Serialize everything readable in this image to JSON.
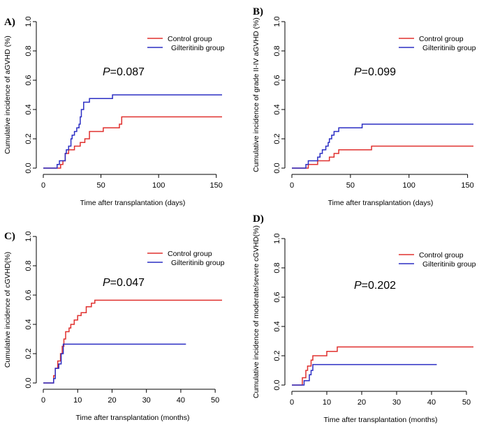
{
  "colors": {
    "control": "#e0302e",
    "gilteritinib": "#2b2ec4",
    "axis": "#000000"
  },
  "chart_data": [
    {
      "type": "line",
      "panel": "A)",
      "xlabel": "Time after transplantation (days)",
      "ylabel": "Cumulative incidence of aGVHD (%)",
      "xlim": [
        0,
        155
      ],
      "ylim": [
        0,
        1
      ],
      "xticks": [
        "0",
        "50",
        "100",
        "150"
      ],
      "xtick_values": [
        0,
        50,
        100,
        150
      ],
      "yticks": [
        "0.0",
        "0.2",
        "0.4",
        "0.6",
        "0.8",
        "1.0"
      ],
      "ytick_values": [
        0,
        0.2,
        0.4,
        0.6,
        0.8,
        1.0
      ],
      "p_prefix": "P",
      "p_value": "=0.087",
      "legend": [
        "Control group",
        "Gilteritinib group"
      ],
      "series": [
        {
          "name": "Control group",
          "x_end": 155,
          "steps": [
            [
              0,
              0
            ],
            [
              15,
              0.025
            ],
            [
              17,
              0.05
            ],
            [
              19,
              0.1
            ],
            [
              22,
              0.125
            ],
            [
              27,
              0.15
            ],
            [
              32,
              0.175
            ],
            [
              36,
              0.2
            ],
            [
              40,
              0.25
            ],
            [
              52,
              0.275
            ],
            [
              66,
              0.3
            ],
            [
              68,
              0.35
            ]
          ]
        },
        {
          "name": "Gilteritinib group",
          "x_end": 155,
          "steps": [
            [
              0,
              0
            ],
            [
              12,
              0.025
            ],
            [
              14,
              0.05
            ],
            [
              19,
              0.1
            ],
            [
              20,
              0.125
            ],
            [
              22,
              0.15
            ],
            [
              24,
              0.2
            ],
            [
              25,
              0.225
            ],
            [
              27,
              0.25
            ],
            [
              29,
              0.275
            ],
            [
              31,
              0.3
            ],
            [
              32,
              0.35
            ],
            [
              33,
              0.4
            ],
            [
              35,
              0.45
            ],
            [
              40,
              0.475
            ],
            [
              60,
              0.5
            ]
          ]
        }
      ]
    },
    {
      "type": "line",
      "panel": "B)",
      "xlabel": "Time after transplantation (days)",
      "ylabel": "Cumulative incidence of grade II-IV aGVHD (%)",
      "xlim": [
        0,
        155
      ],
      "ylim": [
        0,
        1
      ],
      "xticks": [
        "0",
        "50",
        "100",
        "150"
      ],
      "xtick_values": [
        0,
        50,
        100,
        150
      ],
      "yticks": [
        "0.0",
        "0.2",
        "0.4",
        "0.6",
        "0.8",
        "1.0"
      ],
      "ytick_values": [
        0,
        0.2,
        0.4,
        0.6,
        0.8,
        1.0
      ],
      "p_prefix": "P",
      "p_value": "=0.099",
      "legend": [
        "Control group",
        "Gilteritinib group"
      ],
      "series": [
        {
          "name": "Control group",
          "x_end": 155,
          "steps": [
            [
              0,
              0
            ],
            [
              14,
              0.025
            ],
            [
              22,
              0.05
            ],
            [
              32,
              0.075
            ],
            [
              36,
              0.1
            ],
            [
              40,
              0.125
            ],
            [
              68,
              0.15
            ]
          ]
        },
        {
          "name": "Gilteritinib group",
          "x_end": 155,
          "steps": [
            [
              0,
              0
            ],
            [
              12,
              0.025
            ],
            [
              14,
              0.05
            ],
            [
              22,
              0.075
            ],
            [
              24,
              0.1
            ],
            [
              26,
              0.125
            ],
            [
              29,
              0.15
            ],
            [
              31,
              0.175
            ],
            [
              32,
              0.2
            ],
            [
              34,
              0.225
            ],
            [
              36,
              0.25
            ],
            [
              40,
              0.275
            ],
            [
              60,
              0.3
            ]
          ]
        }
      ]
    },
    {
      "type": "line",
      "panel": "C)",
      "xlabel": "Time after transplantation (months)",
      "ylabel": "Cumulative incidence of cGVHD(%)",
      "xlim": [
        0,
        52
      ],
      "ylim": [
        0,
        1
      ],
      "xticks": [
        "0",
        "10",
        "20",
        "30",
        "40",
        "50"
      ],
      "xtick_values": [
        0,
        10,
        20,
        30,
        40,
        50
      ],
      "yticks": [
        "0.0",
        "0.2",
        "0.4",
        "0.6",
        "0.8",
        "1.0"
      ],
      "ytick_values": [
        0,
        0.2,
        0.4,
        0.6,
        0.8,
        1.0
      ],
      "p_prefix": "P",
      "p_value": "=0.047",
      "legend": [
        "Control group",
        "Gilteritinib group"
      ],
      "series": [
        {
          "name": "Control group",
          "x_end": 52,
          "steps": [
            [
              0,
              0
            ],
            [
              3,
              0.05
            ],
            [
              3.5,
              0.1
            ],
            [
              4.2,
              0.15
            ],
            [
              5,
              0.2
            ],
            [
              5.5,
              0.25
            ],
            [
              6,
              0.3
            ],
            [
              6.5,
              0.35
            ],
            [
              7.5,
              0.375
            ],
            [
              8,
              0.4
            ],
            [
              9,
              0.43
            ],
            [
              10,
              0.46
            ],
            [
              11,
              0.48
            ],
            [
              12.5,
              0.52
            ],
            [
              14,
              0.545
            ],
            [
              15,
              0.565
            ]
          ]
        },
        {
          "name": "Gilteritinib group",
          "x_end": 41.5,
          "steps": [
            [
              0,
              0
            ],
            [
              3,
              0.03
            ],
            [
              3.5,
              0.1
            ],
            [
              4.5,
              0.13
            ],
            [
              5.2,
              0.2
            ],
            [
              5.8,
              0.265
            ]
          ]
        }
      ]
    },
    {
      "type": "line",
      "panel": "D)",
      "xlabel": "Time after transplantation (months)",
      "ylabel": "Cumulative incidence of moderate/severe cGVHD(%)",
      "xlim": [
        0,
        52
      ],
      "ylim": [
        0,
        1
      ],
      "xticks": [
        "0",
        "10",
        "20",
        "30",
        "40",
        "50"
      ],
      "xtick_values": [
        0,
        10,
        20,
        30,
        40,
        50
      ],
      "yticks": [
        "0.0",
        "0.2",
        "0.4",
        "0.6",
        "0.8",
        "1.0"
      ],
      "ytick_values": [
        0,
        0.2,
        0.4,
        0.6,
        0.8,
        1.0
      ],
      "p_prefix": "P",
      "p_value": "=0.202",
      "legend": [
        "Control group",
        "Gilteritinib group"
      ],
      "series": [
        {
          "name": "Control group",
          "x_end": 52,
          "steps": [
            [
              0,
              0
            ],
            [
              3,
              0.05
            ],
            [
              4,
              0.1
            ],
            [
              4.5,
              0.13
            ],
            [
              5.5,
              0.17
            ],
            [
              6,
              0.2
            ],
            [
              10,
              0.23
            ],
            [
              13,
              0.26
            ]
          ]
        },
        {
          "name": "Gilteritinib group",
          "x_end": 41.5,
          "steps": [
            [
              0,
              0
            ],
            [
              3.5,
              0.03
            ],
            [
              5,
              0.07
            ],
            [
              5.5,
              0.1
            ],
            [
              6,
              0.14
            ]
          ]
        }
      ]
    }
  ]
}
